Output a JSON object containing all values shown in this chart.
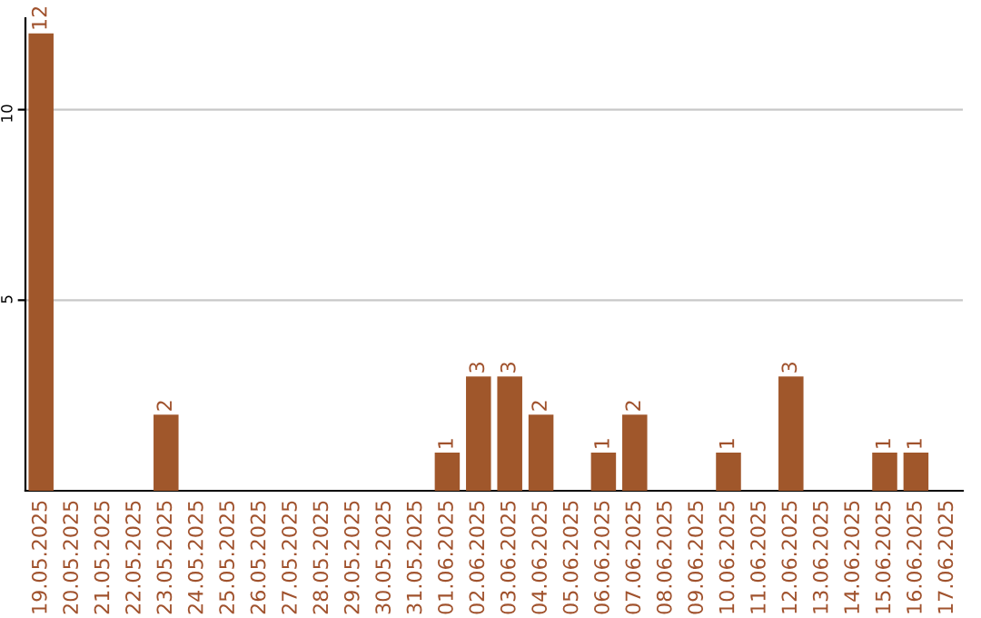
{
  "chart_data": {
    "type": "bar",
    "categories": [
      "19.05.2025",
      "20.05.2025",
      "21.05.2025",
      "22.05.2025",
      "23.05.2025",
      "24.05.2025",
      "25.05.2025",
      "26.05.2025",
      "27.05.2025",
      "28.05.2025",
      "29.05.2025",
      "30.05.2025",
      "31.05.2025",
      "01.06.2025",
      "02.06.2025",
      "03.06.2025",
      "04.06.2025",
      "05.06.2025",
      "06.06.2025",
      "07.06.2025",
      "08.06.2025",
      "09.06.2025",
      "10.06.2025",
      "11.06.2025",
      "12.06.2025",
      "13.06.2025",
      "14.06.2025",
      "15.06.2025",
      "16.06.2025",
      "17.06.2025"
    ],
    "values": [
      12,
      0,
      0,
      0,
      2,
      0,
      0,
      0,
      0,
      0,
      0,
      0,
      0,
      1,
      3,
      3,
      2,
      0,
      1,
      2,
      0,
      0,
      1,
      0,
      3,
      0,
      0,
      1,
      1,
      0
    ],
    "value_labels": [
      "12",
      null,
      null,
      null,
      "2",
      null,
      null,
      null,
      null,
      null,
      null,
      null,
      null,
      "1",
      "3",
      "3",
      "2",
      null,
      "1",
      "2",
      null,
      null,
      "1",
      null,
      "3",
      null,
      null,
      "1",
      "1",
      null
    ],
    "color": "#a0572b",
    "ylim": [
      0,
      12.4
    ],
    "yticks": [
      5,
      10
    ],
    "grid": "y"
  }
}
